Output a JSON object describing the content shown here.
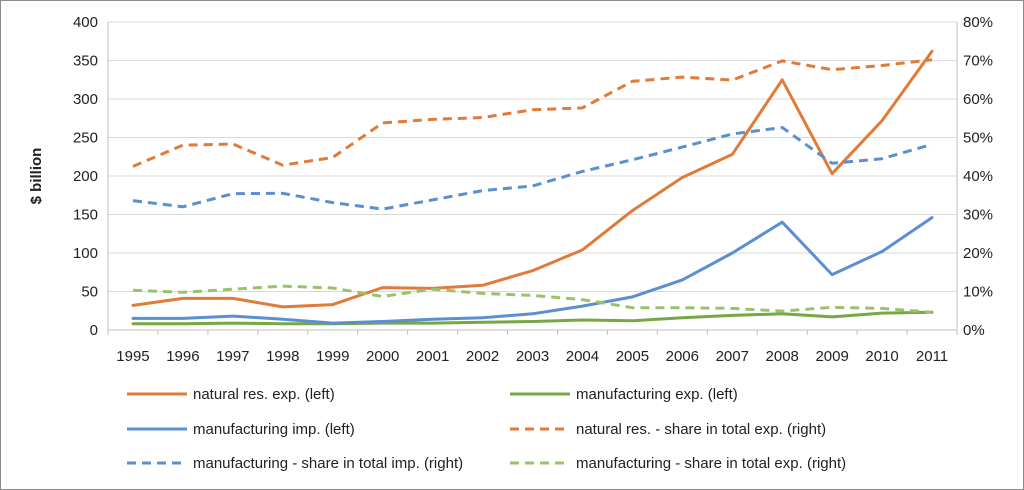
{
  "chart_data": {
    "type": "line",
    "title": "",
    "xlabel": "",
    "ylabel": "$ billion",
    "y2label": "",
    "ylim": [
      0,
      400
    ],
    "yticks": [
      0,
      50,
      100,
      150,
      200,
      250,
      300,
      350,
      400
    ],
    "y2lim": [
      0,
      80
    ],
    "y2ticks": [
      "0%",
      "10%",
      "20%",
      "30%",
      "40%",
      "50%",
      "60%",
      "70%",
      "80%"
    ],
    "grid": "horizontal",
    "legend_position": "bottom",
    "categories": [
      "1995",
      "1996",
      "1997",
      "1998",
      "1999",
      "2000",
      "2001",
      "2002",
      "2003",
      "2004",
      "2005",
      "2006",
      "2007",
      "2008",
      "2009",
      "2010",
      "2011"
    ],
    "series": [
      {
        "name": "natural res. exp. (left)",
        "axis": "left",
        "style": "solid",
        "color": "#E07B39",
        "values": [
          32,
          41,
          41,
          30,
          33,
          55,
          54,
          58,
          77,
          104,
          155,
          198,
          228,
          325,
          203,
          272,
          362
        ]
      },
      {
        "name": "manufacturing exp. (left)",
        "axis": "left",
        "style": "solid",
        "color": "#77A846",
        "values": [
          8,
          8,
          9,
          8,
          8,
          9,
          9,
          10,
          11,
          13,
          12,
          16,
          19,
          21,
          17,
          22,
          23
        ]
      },
      {
        "name": "manufacturing imp. (left)",
        "axis": "left",
        "style": "solid",
        "color": "#5B8FD0",
        "values": [
          15,
          15,
          18,
          14,
          9,
          11,
          14,
          16,
          21,
          31,
          43,
          65,
          100,
          140,
          72,
          102,
          146
        ]
      },
      {
        "name": "natural res. - share in total exp. (right)",
        "axis": "right",
        "style": "dashed",
        "color": "#E07B39",
        "values": [
          42.5,
          48,
          48.3,
          42.8,
          44.8,
          53.8,
          54.7,
          55.2,
          57.2,
          57.7,
          64.6,
          65.7,
          64.9,
          69.9,
          67.6,
          68.7,
          70.2
        ]
      },
      {
        "name": "manufacturing - share in total imp. (right)",
        "axis": "right",
        "style": "dashed",
        "color": "#5B8FD0",
        "values": [
          33.6,
          32,
          35.4,
          35.5,
          33.1,
          31.4,
          33.8,
          36.2,
          37.4,
          41.2,
          44.2,
          47.5,
          50.9,
          52.6,
          43.3,
          44.5,
          48.2
        ]
      },
      {
        "name": "manufacturing - share in total exp. (right)",
        "axis": "right",
        "style": "dashed",
        "color": "#9BC26A",
        "values": [
          10.3,
          9.8,
          10.6,
          11.4,
          10.9,
          8.7,
          10.6,
          9.5,
          9,
          7.9,
          5.8,
          5.8,
          5.6,
          4.9,
          5.9,
          5.6,
          4.6
        ]
      }
    ]
  }
}
